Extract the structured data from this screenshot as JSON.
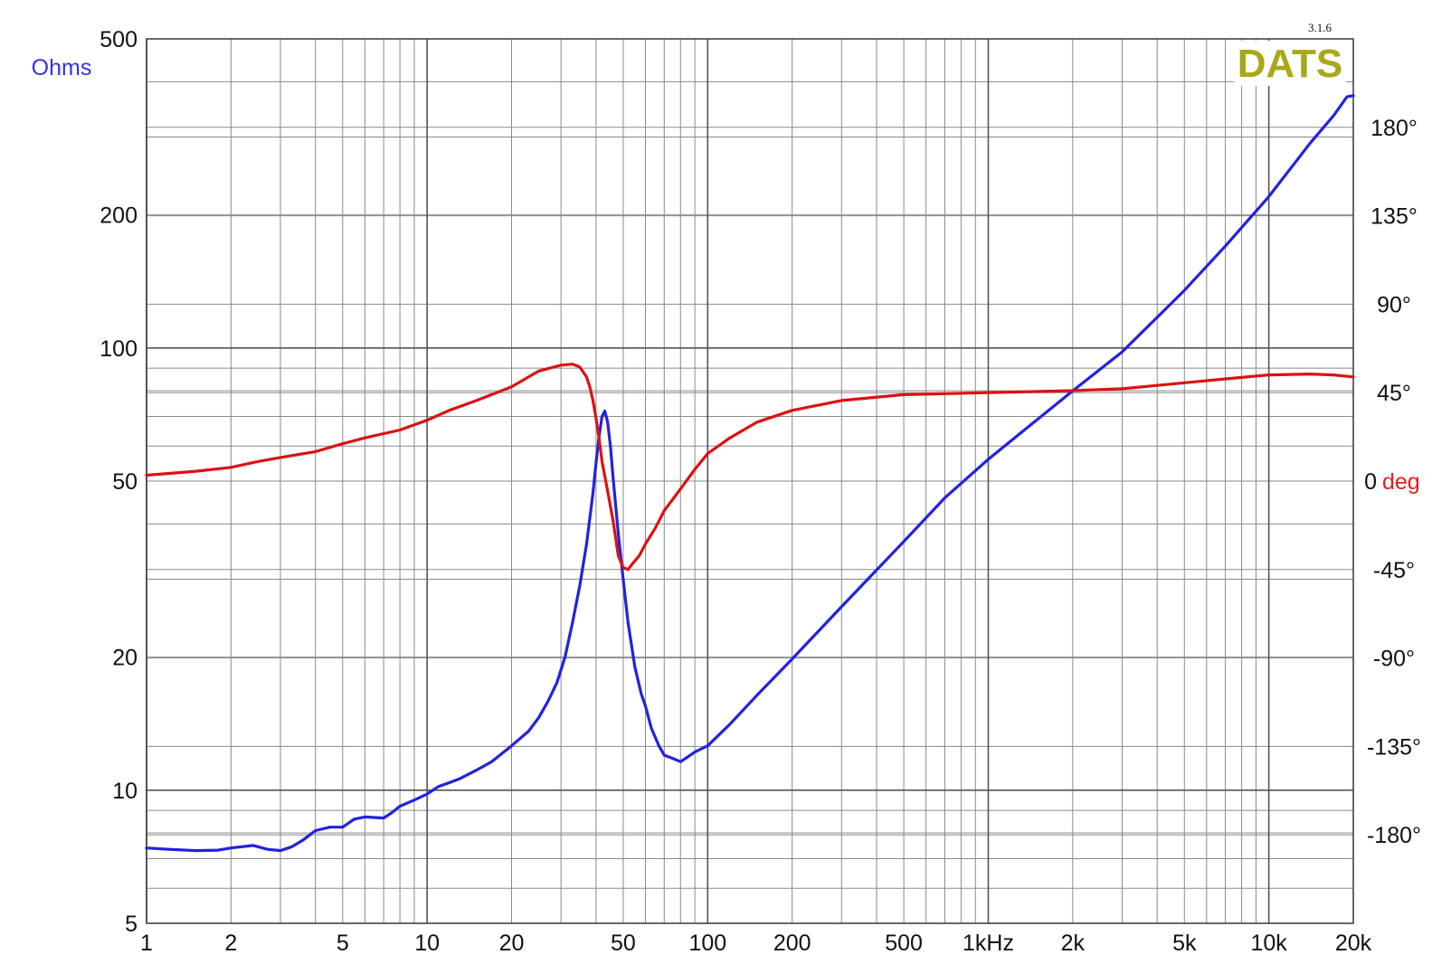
{
  "chart_data": {
    "type": "line",
    "title": "",
    "version": "3.1.6",
    "logo": "DATS",
    "logo_color": "#a8a81a",
    "x_scale": "log",
    "xlim": [
      1,
      20000
    ],
    "x_ticks": [
      {
        "v": 1,
        "label": "1"
      },
      {
        "v": 2,
        "label": "2"
      },
      {
        "v": 5,
        "label": "5"
      },
      {
        "v": 10,
        "label": "10"
      },
      {
        "v": 20,
        "label": "20"
      },
      {
        "v": 50,
        "label": "50"
      },
      {
        "v": 100,
        "label": "100"
      },
      {
        "v": 200,
        "label": "200"
      },
      {
        "v": 500,
        "label": "500"
      },
      {
        "v": 1000,
        "label": "1kHz"
      },
      {
        "v": 2000,
        "label": "2k"
      },
      {
        "v": 5000,
        "label": "5k"
      },
      {
        "v": 10000,
        "label": "10k"
      },
      {
        "v": 20000,
        "label": "20k"
      }
    ],
    "y_left": {
      "label": "Ohms",
      "scale": "log",
      "lim": [
        5,
        500
      ],
      "color": "#3333dd",
      "ticks": [
        {
          "v": 500,
          "label": "500"
        },
        {
          "v": 200,
          "label": "200"
        },
        {
          "v": 100,
          "label": "100"
        },
        {
          "v": 50,
          "label": "50"
        },
        {
          "v": 20,
          "label": "20"
        },
        {
          "v": 10,
          "label": "10"
        },
        {
          "v": 5,
          "label": "5"
        }
      ]
    },
    "y_right": {
      "label": "deg",
      "scale": "linear",
      "lim": [
        -225,
        225
      ],
      "color": "#e02020",
      "ticks": [
        {
          "v": 180,
          "label": "180°"
        },
        {
          "v": 135,
          "label": "135°"
        },
        {
          "v": 90,
          "label": "90°"
        },
        {
          "v": 45,
          "label": "45°"
        },
        {
          "v": 0,
          "label": "0"
        },
        {
          "v": -45,
          "label": "-45°"
        },
        {
          "v": -90,
          "label": "-90°"
        },
        {
          "v": -135,
          "label": "-135°"
        },
        {
          "v": -180,
          "label": "-180°"
        }
      ]
    },
    "grid": true,
    "series": [
      {
        "axis": "left",
        "color": "#2222dd",
        "points": [
          [
            1,
            7.4
          ],
          [
            1.2,
            7.35
          ],
          [
            1.5,
            7.3
          ],
          [
            1.8,
            7.32
          ],
          [
            2.0,
            7.4
          ],
          [
            2.4,
            7.5
          ],
          [
            2.7,
            7.35
          ],
          [
            3.0,
            7.3
          ],
          [
            3.3,
            7.45
          ],
          [
            3.6,
            7.7
          ],
          [
            4.0,
            8.1
          ],
          [
            4.5,
            8.25
          ],
          [
            5.0,
            8.25
          ],
          [
            5.5,
            8.6
          ],
          [
            6.0,
            8.7
          ],
          [
            7.0,
            8.65
          ],
          [
            7.5,
            8.9
          ],
          [
            8.0,
            9.2
          ],
          [
            9.0,
            9.5
          ],
          [
            10,
            9.8
          ],
          [
            11,
            10.2
          ],
          [
            12,
            10.4
          ],
          [
            13,
            10.6
          ],
          [
            15,
            11.1
          ],
          [
            17,
            11.6
          ],
          [
            20,
            12.6
          ],
          [
            23,
            13.6
          ],
          [
            25,
            14.6
          ],
          [
            27,
            15.9
          ],
          [
            29,
            17.5
          ],
          [
            31,
            20
          ],
          [
            33,
            24
          ],
          [
            35,
            29
          ],
          [
            37,
            36
          ],
          [
            39,
            47
          ],
          [
            40,
            55
          ],
          [
            41,
            63
          ],
          [
            42,
            70
          ],
          [
            43,
            72
          ],
          [
            44,
            68
          ],
          [
            45,
            60
          ],
          [
            46,
            51
          ],
          [
            48,
            38
          ],
          [
            50,
            30
          ],
          [
            52,
            24
          ],
          [
            55,
            19
          ],
          [
            58,
            16.5
          ],
          [
            60,
            15.5
          ],
          [
            63,
            13.8
          ],
          [
            67,
            12.6
          ],
          [
            70,
            12.0
          ],
          [
            75,
            11.8
          ],
          [
            80,
            11.6
          ],
          [
            85,
            11.9
          ],
          [
            90,
            12.2
          ],
          [
            100,
            12.6
          ],
          [
            120,
            14.1
          ],
          [
            150,
            16.4
          ],
          [
            200,
            19.8
          ],
          [
            300,
            26
          ],
          [
            500,
            36.5
          ],
          [
            700,
            45.8
          ],
          [
            1000,
            56
          ],
          [
            1500,
            69
          ],
          [
            2000,
            80
          ],
          [
            3000,
            98
          ],
          [
            5000,
            135
          ],
          [
            7000,
            170
          ],
          [
            10000,
            220
          ],
          [
            14000,
            290
          ],
          [
            17000,
            335
          ],
          [
            19000,
            370
          ],
          [
            20000,
            372
          ]
        ]
      },
      {
        "axis": "right",
        "color": "#dd1111",
        "points": [
          [
            1,
            3
          ],
          [
            1.5,
            5
          ],
          [
            2.0,
            7
          ],
          [
            2.5,
            10
          ],
          [
            3.0,
            12
          ],
          [
            4.0,
            15
          ],
          [
            5.0,
            19
          ],
          [
            6.0,
            22
          ],
          [
            8.0,
            26
          ],
          [
            10,
            31
          ],
          [
            12,
            36
          ],
          [
            15,
            41
          ],
          [
            20,
            48
          ],
          [
            23,
            53
          ],
          [
            25,
            56
          ],
          [
            30,
            59
          ],
          [
            33,
            59.5
          ],
          [
            35,
            58
          ],
          [
            37,
            53
          ],
          [
            38,
            48
          ],
          [
            39,
            41
          ],
          [
            40,
            32
          ],
          [
            41,
            22
          ],
          [
            42,
            10
          ],
          [
            44,
            -5
          ],
          [
            46,
            -20
          ],
          [
            48,
            -38
          ],
          [
            50,
            -44
          ],
          [
            52,
            -45
          ],
          [
            54,
            -42
          ],
          [
            57,
            -38
          ],
          [
            60,
            -32
          ],
          [
            65,
            -24
          ],
          [
            70,
            -15
          ],
          [
            80,
            -4
          ],
          [
            90,
            6
          ],
          [
            100,
            14
          ],
          [
            120,
            22
          ],
          [
            150,
            30
          ],
          [
            200,
            36
          ],
          [
            300,
            41
          ],
          [
            500,
            44
          ],
          [
            1000,
            45
          ],
          [
            2000,
            46
          ],
          [
            3000,
            47
          ],
          [
            5000,
            50
          ],
          [
            7000,
            52
          ],
          [
            10000,
            54
          ],
          [
            14000,
            54.5
          ],
          [
            17000,
            54
          ],
          [
            20000,
            53
          ]
        ]
      }
    ]
  }
}
